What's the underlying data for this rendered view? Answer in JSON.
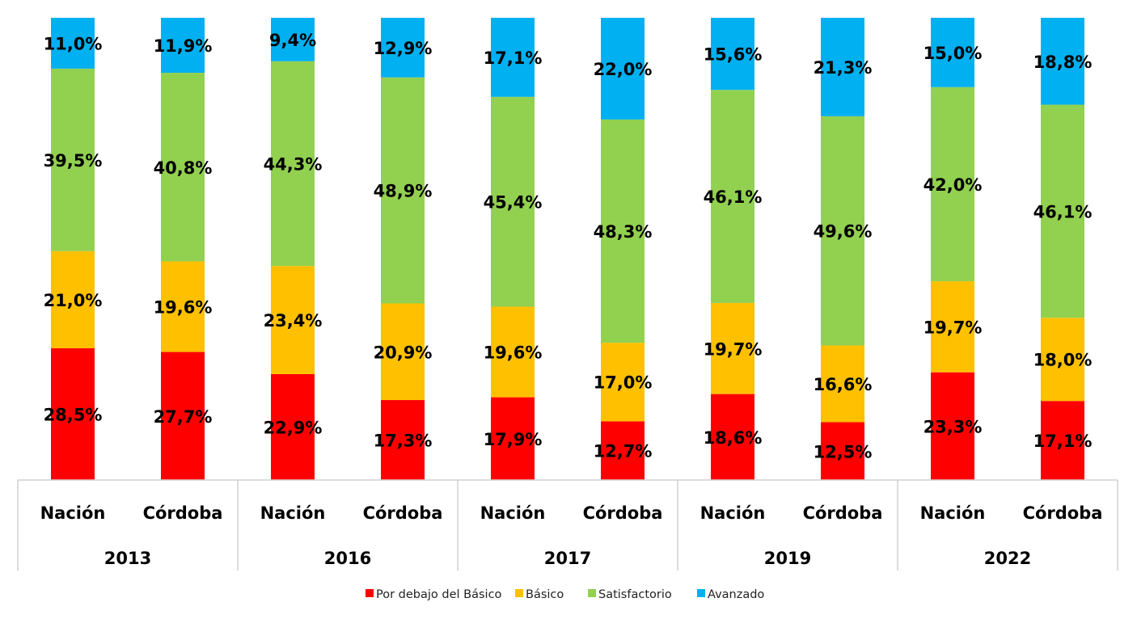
{
  "chart_data": {
    "type": "bar",
    "stacked": true,
    "percent": true,
    "ylim": [
      0,
      100
    ],
    "grid": false,
    "legend_position": "bottom",
    "groups": [
      "2013",
      "2016",
      "2017",
      "2019",
      "2022"
    ],
    "categories": [
      "Nación",
      "Córdoba",
      "Nación",
      "Córdoba",
      "Nación",
      "Córdoba",
      "Nación",
      "Córdoba",
      "Nación",
      "Córdoba"
    ],
    "series": [
      {
        "name": "Por debajo del Básico",
        "color": "#FF0000",
        "values": [
          28.5,
          27.7,
          22.9,
          17.3,
          17.9,
          12.7,
          18.6,
          12.5,
          23.3,
          17.1
        ]
      },
      {
        "name": "Básico",
        "color": "#FFC000",
        "values": [
          21.0,
          19.6,
          23.4,
          20.9,
          19.6,
          17.0,
          19.7,
          16.6,
          19.7,
          18.0
        ]
      },
      {
        "name": "Satisfactorio",
        "color": "#92D050",
        "values": [
          39.5,
          40.8,
          44.3,
          48.9,
          45.4,
          48.3,
          46.1,
          49.6,
          42.0,
          46.1
        ]
      },
      {
        "name": "Avanzado",
        "color": "#00B0F0",
        "values": [
          11.0,
          11.9,
          9.4,
          12.9,
          17.1,
          22.0,
          15.6,
          21.3,
          15.0,
          18.8
        ]
      }
    ],
    "data_labels": [
      [
        "28,5%",
        "27,7%",
        "22,9%",
        "17,3%",
        "17,9%",
        "12,7%",
        "18,6%",
        "12,5%",
        "23,3%",
        "17,1%"
      ],
      [
        "21,0%",
        "19,6%",
        "23,4%",
        "20,9%",
        "19,6%",
        "17,0%",
        "19,7%",
        "16,6%",
        "19,7%",
        "18,0%"
      ],
      [
        "39,5%",
        "40,8%",
        "44,3%",
        "48,9%",
        "45,4%",
        "48,3%",
        "46,1%",
        "49,6%",
        "42,0%",
        "46,1%"
      ],
      [
        "11,0%",
        "11,9%",
        "9,4%",
        "12,9%",
        "17,1%",
        "22,0%",
        "15,6%",
        "21,3%",
        "15,0%",
        "18,8%"
      ]
    ]
  }
}
